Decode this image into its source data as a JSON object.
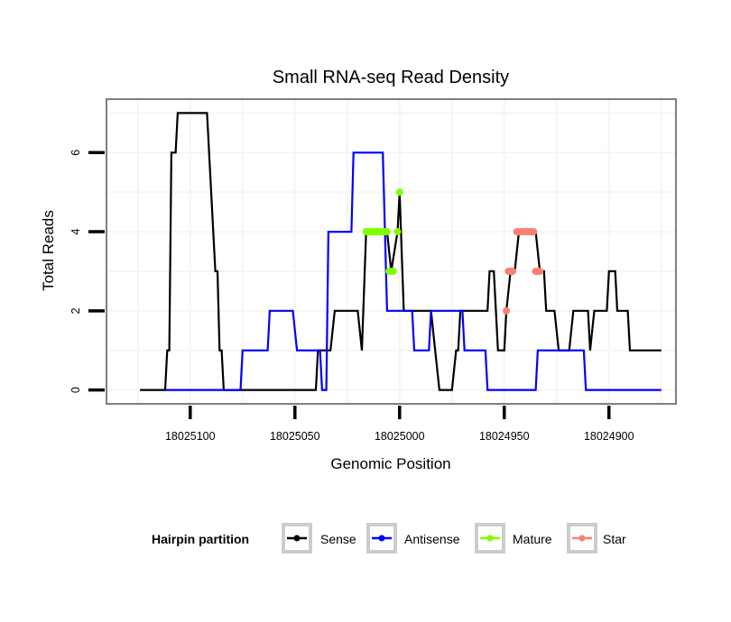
{
  "chart_data": {
    "type": "line",
    "title": "Small RNA-seq Read Density",
    "xlabel": "Genomic Position",
    "ylabel": "Total Reads",
    "x_reversed": true,
    "xlim": [
      18025140,
      18024868
    ],
    "ylim": [
      -0.35,
      7.35
    ],
    "x_ticks": [
      18025100,
      18025050,
      18025000,
      18024950,
      18024900
    ],
    "x_tick_labels": [
      "18025100",
      "18025050",
      "18025000",
      "18024950",
      "18024900"
    ],
    "y_ticks": [
      0,
      2,
      4,
      6
    ],
    "y_tick_labels": [
      "0",
      "2",
      "4",
      "6"
    ],
    "grid": true,
    "legend": {
      "title": "Hairpin partition",
      "placement": "bottom",
      "entries": [
        {
          "label": "Sense",
          "color": "#000000"
        },
        {
          "label": "Antisense",
          "color": "#0000FF"
        },
        {
          "label": "Mature",
          "color": "#7FFF00"
        },
        {
          "label": "Star",
          "color": "#FA8072"
        }
      ]
    },
    "series": [
      {
        "name": "Sense",
        "color": "#000000",
        "style": "line",
        "points": [
          [
            18025124,
            0
          ],
          [
            18025112,
            0
          ],
          [
            18025111,
            1
          ],
          [
            18025110,
            1
          ],
          [
            18025109,
            6
          ],
          [
            18025107,
            6
          ],
          [
            18025106,
            7
          ],
          [
            18025092,
            7
          ],
          [
            18025090,
            5
          ],
          [
            18025088,
            3
          ],
          [
            18025087,
            3
          ],
          [
            18025086,
            1
          ],
          [
            18025085,
            1
          ],
          [
            18025084,
            0
          ],
          [
            18025060,
            0
          ],
          [
            18025059,
            0
          ],
          [
            18025055,
            0
          ],
          [
            18025050,
            0
          ],
          [
            18025040,
            0
          ],
          [
            18025039,
            1
          ],
          [
            18025033,
            1
          ],
          [
            18025031,
            2
          ],
          [
            18025020,
            2
          ],
          [
            18025018,
            1
          ],
          [
            18025016,
            4
          ],
          [
            18025006,
            4
          ],
          [
            18025004,
            3
          ],
          [
            18025001,
            4
          ],
          [
            18025000,
            5
          ],
          [
            18024998,
            2
          ],
          [
            18024985,
            2
          ],
          [
            18024983,
            1
          ],
          [
            18024981,
            0
          ],
          [
            18024975,
            0
          ],
          [
            18024973,
            1
          ],
          [
            18024972,
            1
          ],
          [
            18024971,
            2
          ],
          [
            18024958,
            2
          ],
          [
            18024957,
            3
          ],
          [
            18024955,
            3
          ],
          [
            18024953,
            1
          ],
          [
            18024950,
            1
          ],
          [
            18024949,
            2
          ],
          [
            18024947,
            3
          ],
          [
            18024945,
            3
          ],
          [
            18024943,
            4
          ],
          [
            18024935,
            4
          ],
          [
            18024933,
            3
          ],
          [
            18024931,
            3
          ],
          [
            18024930,
            2
          ],
          [
            18024926,
            2
          ],
          [
            18024924,
            1
          ],
          [
            18024919,
            1
          ],
          [
            18024917,
            2
          ],
          [
            18024910,
            2
          ],
          [
            18024909,
            1
          ],
          [
            18024907,
            2
          ],
          [
            18024901,
            2
          ],
          [
            18024900,
            3
          ],
          [
            18024897,
            3
          ],
          [
            18024896,
            2
          ],
          [
            18024891,
            2
          ],
          [
            18024890,
            1
          ],
          [
            18024875,
            1
          ]
        ]
      },
      {
        "name": "Antisense",
        "color": "#0000FF",
        "style": "line",
        "points": [
          [
            18025112,
            0
          ],
          [
            18025084,
            0
          ],
          [
            18025076,
            0
          ],
          [
            18025075,
            1
          ],
          [
            18025063,
            1
          ],
          [
            18025062,
            2
          ],
          [
            18025051,
            2
          ],
          [
            18025049,
            1
          ],
          [
            18025038,
            1
          ],
          [
            18025037,
            0
          ],
          [
            18025035,
            0
          ],
          [
            18025034,
            4
          ],
          [
            18025023,
            4
          ],
          [
            18025022,
            6
          ],
          [
            18025008,
            6
          ],
          [
            18025006,
            2
          ],
          [
            18024994,
            2
          ],
          [
            18024993,
            1
          ],
          [
            18024986,
            1
          ],
          [
            18024985,
            2
          ],
          [
            18024970,
            2
          ],
          [
            18024969,
            1
          ],
          [
            18024959,
            1
          ],
          [
            18024958,
            0
          ],
          [
            18024935,
            0
          ],
          [
            18024934,
            1
          ],
          [
            18024912,
            1
          ],
          [
            18024911,
            0
          ],
          [
            18024875,
            0
          ]
        ]
      },
      {
        "name": "Mature",
        "color": "#7FFF00",
        "style": "points",
        "points": [
          [
            18025016,
            4
          ],
          [
            18025015,
            4
          ],
          [
            18025014,
            4
          ],
          [
            18025013,
            4
          ],
          [
            18025012,
            4
          ],
          [
            18025011,
            4
          ],
          [
            18025010,
            4
          ],
          [
            18025009,
            4
          ],
          [
            18025008,
            4
          ],
          [
            18025007,
            4
          ],
          [
            18025006,
            4
          ],
          [
            18025005,
            3
          ],
          [
            18025004,
            3
          ],
          [
            18025003,
            3
          ],
          [
            18025001,
            4
          ],
          [
            18025000,
            5
          ]
        ]
      },
      {
        "name": "Star",
        "color": "#FA8072",
        "style": "points",
        "points": [
          [
            18024949,
            2
          ],
          [
            18024948,
            3
          ],
          [
            18024947,
            3
          ],
          [
            18024946,
            3
          ],
          [
            18024944,
            4
          ],
          [
            18024943,
            4
          ],
          [
            18024942,
            4
          ],
          [
            18024941,
            4
          ],
          [
            18024940,
            4
          ],
          [
            18024939,
            4
          ],
          [
            18024938,
            4
          ],
          [
            18024937,
            4
          ],
          [
            18024936,
            4
          ],
          [
            18024935,
            3
          ],
          [
            18024934,
            3
          ],
          [
            18024933,
            3
          ]
        ]
      }
    ]
  }
}
